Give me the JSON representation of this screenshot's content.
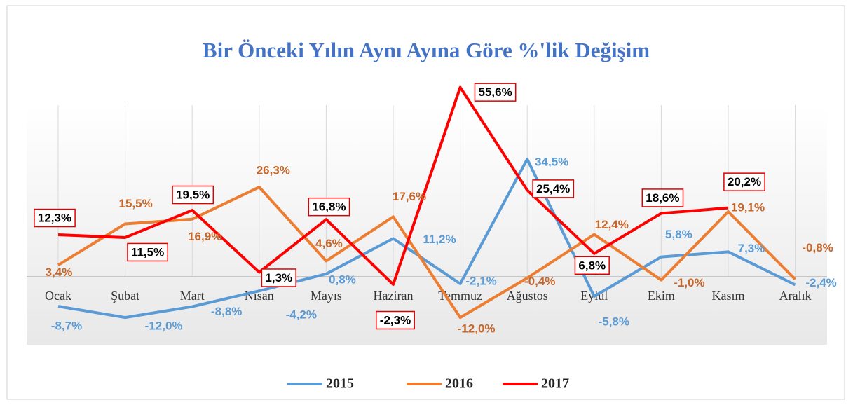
{
  "chart_data": {
    "type": "line",
    "title": "Bir Önceki Yılın Aynı Ayına Göre %'lik Değişim",
    "categories": [
      "Ocak",
      "Şubat",
      "Mart",
      "Nisan",
      "Mayıs",
      "Haziran",
      "Temmuz",
      "Ağustos",
      "Eylül",
      "Ekim",
      "Kasım",
      "Aralık"
    ],
    "ylim": [
      -20,
      58
    ],
    "series": [
      {
        "name": "2015",
        "color": "#5b9bd5",
        "values": [
          -8.7,
          -12.0,
          -8.8,
          -4.2,
          0.8,
          11.2,
          -2.1,
          34.5,
          -5.8,
          5.8,
          7.3,
          -2.4
        ],
        "value_labels": [
          "-8,7%",
          "-12,0%",
          "-8,8%",
          "-4,2%",
          "0,8%",
          "11,2%",
          "-2,1%",
          "34,5%",
          "-5,8%",
          "5,8%",
          "7,3%",
          "-2,4%"
        ]
      },
      {
        "name": "2016",
        "color": "#ed7d31",
        "values": [
          3.4,
          15.5,
          16.9,
          26.3,
          4.6,
          17.6,
          -12.0,
          -0.4,
          12.4,
          -1.0,
          19.1,
          -0.8
        ],
        "value_labels": [
          "3,4%",
          "15,5%",
          "16,9%",
          "26,3%",
          "4,6%",
          "17,6%",
          "-12,0%",
          "-0,4%",
          "12,4%",
          "-1,0%",
          "19,1%",
          "-0,8%"
        ]
      },
      {
        "name": "2017",
        "color": "#ff0000",
        "values": [
          12.3,
          11.5,
          19.5,
          1.3,
          16.8,
          -2.3,
          55.6,
          25.4,
          6.8,
          18.6,
          20.2,
          null
        ],
        "value_labels": [
          "12,3%",
          "11,5%",
          "19,5%",
          "1,3%",
          "16,8%",
          "-2,3%",
          "55,6%",
          "25,4%",
          "6,8%",
          "18,6%",
          "20,2%",
          null
        ]
      }
    ]
  }
}
